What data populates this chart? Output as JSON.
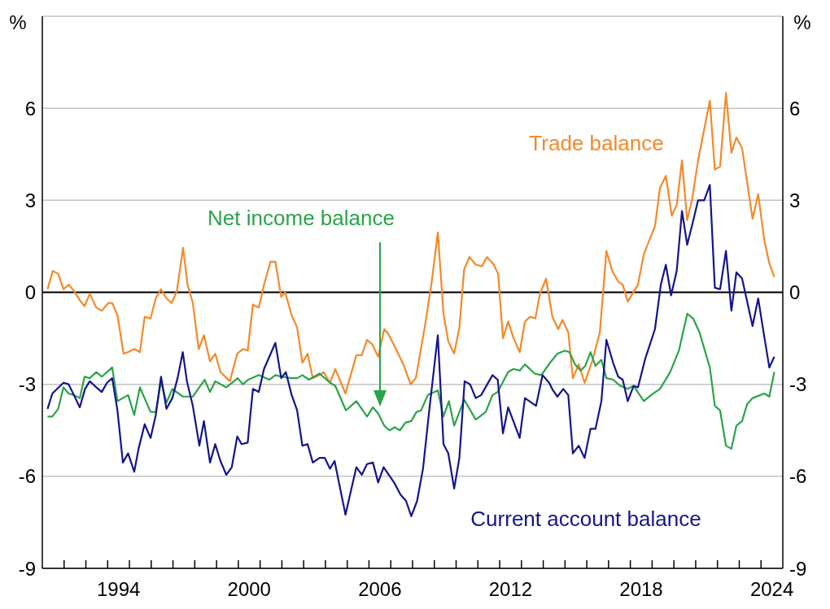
{
  "chart_data": {
    "type": "line",
    "ylabel": "%",
    "y2label": "%",
    "xlim": [
      1991,
      2025
    ],
    "xticks": [
      {
        "value": 1992,
        "label": null
      },
      {
        "value": 1993,
        "label": null
      },
      {
        "value": 1994,
        "label": null
      },
      {
        "value": 1994.5,
        "label": "1994"
      },
      {
        "value": 1995,
        "label": null
      },
      {
        "value": 1996,
        "label": null
      },
      {
        "value": 1997,
        "label": null
      },
      {
        "value": 1998,
        "label": null
      },
      {
        "value": 1999,
        "label": null
      },
      {
        "value": 2000,
        "label": null
      },
      {
        "value": 2000.5,
        "label": "2000"
      },
      {
        "value": 2001,
        "label": null
      },
      {
        "value": 2002,
        "label": null
      },
      {
        "value": 2003,
        "label": null
      },
      {
        "value": 2004,
        "label": null
      },
      {
        "value": 2005,
        "label": null
      },
      {
        "value": 2006,
        "label": null
      },
      {
        "value": 2006.5,
        "label": "2006"
      },
      {
        "value": 2007,
        "label": null
      },
      {
        "value": 2008,
        "label": null
      },
      {
        "value": 2009,
        "label": null
      },
      {
        "value": 2010,
        "label": null
      },
      {
        "value": 2011,
        "label": null
      },
      {
        "value": 2012,
        "label": null
      },
      {
        "value": 2012.5,
        "label": "2012"
      },
      {
        "value": 2013,
        "label": null
      },
      {
        "value": 2014,
        "label": null
      },
      {
        "value": 2015,
        "label": null
      },
      {
        "value": 2016,
        "label": null
      },
      {
        "value": 2017,
        "label": null
      },
      {
        "value": 2018,
        "label": null
      },
      {
        "value": 2018.5,
        "label": "2018"
      },
      {
        "value": 2019,
        "label": null
      },
      {
        "value": 2020,
        "label": null
      },
      {
        "value": 2021,
        "label": null
      },
      {
        "value": 2022,
        "label": null
      },
      {
        "value": 2023,
        "label": null
      },
      {
        "value": 2024,
        "label": null
      },
      {
        "value": 2024.5,
        "label": "2024"
      }
    ],
    "ylim": [
      -9,
      9
    ],
    "yticks": [
      -9,
      -6,
      -3,
      0,
      3,
      6
    ],
    "y2lim": [
      -9,
      9
    ],
    "y2ticks": [
      -9,
      -6,
      -3,
      0,
      3,
      6
    ],
    "grid": "y",
    "marker": "none",
    "ref_lines": [
      {
        "axis": "y",
        "value": 0,
        "color": "#000000"
      }
    ],
    "series": [
      {
        "name": "Trade balance",
        "color": "#f5892a",
        "x": [
          1991.24,
          1991.48,
          1991.73,
          1991.97,
          1992.21,
          1992.45,
          1992.76,
          1992.94,
          1993.18,
          1993.48,
          1993.73,
          1994.03,
          1994.21,
          1994.45,
          1994.73,
          1994.94,
          1995.22,
          1995.48,
          1995.7,
          1995.97,
          1996.21,
          1996.45,
          1996.7,
          1996.94,
          1997.18,
          1997.46,
          1997.67,
          1997.91,
          1998.18,
          1998.42,
          1998.7,
          1998.94,
          1999.18,
          1999.61,
          1999.95,
          2000.21,
          2000.43,
          2000.67,
          2000.94,
          2001.18,
          2001.48,
          2001.7,
          2001.97,
          2002.15,
          2002.45,
          2002.7,
          2002.94,
          2003.18,
          2003.42,
          2003.73,
          2003.91,
          2004.21,
          2004.45,
          2004.92,
          2005.42,
          2005.67,
          2005.91,
          2006.15,
          2006.42,
          2006.7,
          2006.88,
          2007.24,
          2007.61,
          2007.91,
          2008.15,
          2008.58,
          2008.88,
          2009.16,
          2009.42,
          2009.64,
          2009.91,
          2010.15,
          2010.37,
          2010.61,
          2010.9,
          2011.18,
          2011.42,
          2011.73,
          2011.93,
          2012.15,
          2012.39,
          2012.64,
          2012.92,
          2013.16,
          2013.4,
          2013.64,
          2013.85,
          2014.13,
          2014.42,
          2014.69,
          2014.88,
          2015.15,
          2015.36,
          2015.63,
          2015.9,
          2016.27,
          2016.6,
          2016.9,
          2017.17,
          2017.44,
          2017.65,
          2017.88,
          2018.35,
          2018.62,
          2019.13,
          2019.36,
          2019.63,
          2019.9,
          2020.13,
          2020.37,
          2020.61,
          2020.84,
          2021.11,
          2021.65,
          2021.88,
          2022.12,
          2022.39,
          2022.64,
          2022.87,
          2023.13,
          2023.61,
          2023.87,
          2024.15,
          2024.38,
          2024.61
        ],
        "values": [
          0.1,
          0.7,
          0.6,
          0.1,
          0.25,
          0.05,
          -0.3,
          -0.45,
          -0.05,
          -0.5,
          -0.6,
          -0.35,
          -0.35,
          -0.75,
          -2.0,
          -1.95,
          -1.85,
          -1.95,
          -0.8,
          -0.85,
          -0.2,
          0.1,
          -0.2,
          -0.35,
          0.05,
          1.45,
          0.25,
          -0.35,
          -1.85,
          -1.4,
          -2.25,
          -2.0,
          -2.6,
          -2.9,
          -2.0,
          -1.85,
          -1.9,
          -0.4,
          -0.5,
          0.25,
          1.0,
          1.0,
          -0.15,
          0,
          -0.75,
          -1.15,
          -2.3,
          -2.0,
          -2.8,
          -2.7,
          -2.6,
          -2.95,
          -2.5,
          -3.3,
          -2.05,
          -2.05,
          -1.55,
          -1.7,
          -2.1,
          -1.2,
          -1.35,
          -1.85,
          -2.4,
          -3.0,
          -2.8,
          -1.05,
          0.35,
          1.95,
          -0.7,
          -1.6,
          -2.0,
          -1.15,
          0.75,
          1.15,
          0.9,
          0.85,
          1.15,
          0.9,
          0.6,
          -1.5,
          -0.95,
          -1.5,
          -1.95,
          -0.95,
          -0.8,
          -0.85,
          -0.05,
          0.45,
          -0.8,
          -1.2,
          -0.9,
          -1.3,
          -2.8,
          -2.35,
          -2.95,
          -2.2,
          -1.3,
          1.35,
          0.7,
          0.35,
          0.25,
          -0.3,
          0.25,
          1.25,
          2.15,
          3.4,
          3.8,
          2.5,
          2.85,
          4.3,
          2.35,
          3.05,
          4.3,
          6.25,
          4.0,
          4.1,
          6.5,
          4.55,
          5.05,
          4.7,
          2.4,
          3.2,
          1.7,
          0.95,
          0.5
        ]
      },
      {
        "name": "Net income balance",
        "color": "#2ba34a",
        "x": [
          1991.24,
          1991.46,
          1991.73,
          1991.97,
          1992.21,
          1992.45,
          1992.72,
          1992.94,
          1993.18,
          1993.48,
          1993.73,
          1993.97,
          1994.21,
          1994.45,
          1994.94,
          1995.22,
          1995.48,
          1995.97,
          1996.21,
          1996.45,
          1996.7,
          1996.97,
          1997.45,
          1997.91,
          1998.45,
          1998.7,
          1998.94,
          1999.45,
          1999.97,
          2000.21,
          2000.45,
          2000.94,
          2001.42,
          2001.7,
          2001.97,
          2002.45,
          2002.7,
          2002.94,
          2003.24,
          2003.73,
          2004.21,
          2004.45,
          2004.94,
          2005.42,
          2005.91,
          2006.18,
          2006.42,
          2006.7,
          2006.94,
          2007.18,
          2007.42,
          2007.67,
          2007.94,
          2008.18,
          2008.39,
          2008.7,
          2009.16,
          2009.42,
          2009.67,
          2009.91,
          2010.37,
          2010.9,
          2011.36,
          2011.67,
          2011.91,
          2012.39,
          2012.64,
          2012.92,
          2013.16,
          2013.61,
          2013.91,
          2014.31,
          2014.65,
          2014.99,
          2015.2,
          2015.46,
          2015.72,
          2015.93,
          2016.17,
          2016.4,
          2016.67,
          2016.9,
          2017.21,
          2017.54,
          2017.88,
          2018.15,
          2018.62,
          2018.95,
          2019.36,
          2019.83,
          2020.23,
          2020.61,
          2020.88,
          2021.17,
          2021.65,
          2021.88,
          2022.12,
          2022.39,
          2022.64,
          2022.87,
          2023.13,
          2023.36,
          2023.61,
          2024.15,
          2024.38,
          2024.61
        ],
        "values": [
          -4.05,
          -4.05,
          -3.8,
          -3.1,
          -3.3,
          -3.35,
          -3.45,
          -2.75,
          -2.8,
          -2.6,
          -2.75,
          -2.6,
          -2.45,
          -3.55,
          -3.35,
          -4.0,
          -3.1,
          -3.9,
          -3.9,
          -2.9,
          -3.6,
          -3.15,
          -3.4,
          -3.4,
          -2.85,
          -3.25,
          -2.9,
          -3.1,
          -2.8,
          -3.0,
          -2.85,
          -2.7,
          -2.85,
          -2.7,
          -2.75,
          -2.8,
          -2.8,
          -2.7,
          -2.85,
          -2.65,
          -2.95,
          -3.05,
          -3.85,
          -3.55,
          -4.05,
          -3.75,
          -3.95,
          -4.35,
          -4.5,
          -4.4,
          -4.5,
          -4.25,
          -4.2,
          -3.9,
          -3.85,
          -3.35,
          -3.2,
          -4.05,
          -3.55,
          -4.35,
          -3.5,
          -4.15,
          -3.9,
          -3.35,
          -3.25,
          -2.6,
          -2.5,
          -2.55,
          -2.35,
          -2.65,
          -2.7,
          -2.3,
          -2.0,
          -1.9,
          -1.95,
          -2.35,
          -2.55,
          -2.4,
          -1.95,
          -2.4,
          -2.2,
          -2.8,
          -2.85,
          -3.05,
          -3.15,
          -3.05,
          -3.55,
          -3.35,
          -3.15,
          -2.6,
          -1.9,
          -0.7,
          -0.85,
          -1.3,
          -2.45,
          -3.7,
          -3.85,
          -5.0,
          -5.1,
          -4.35,
          -4.2,
          -3.65,
          -3.45,
          -3.3,
          -3.4,
          -2.6
        ]
      },
      {
        "name": "Current account balance",
        "color": "#13158c",
        "x": [
          1991.24,
          1991.46,
          1991.97,
          1992.21,
          1992.45,
          1992.72,
          1992.96,
          1993.18,
          1993.48,
          1993.73,
          1993.97,
          1994.21,
          1994.45,
          1994.7,
          1994.94,
          1995.22,
          1995.42,
          1995.7,
          1995.97,
          1996.21,
          1996.45,
          1996.7,
          1996.97,
          1997.21,
          1997.45,
          1997.64,
          1997.91,
          1998.21,
          1998.42,
          1998.7,
          1998.94,
          1999.18,
          1999.45,
          1999.7,
          1999.95,
          2000.15,
          2000.43,
          2000.67,
          2000.94,
          2001.18,
          2001.7,
          2001.97,
          2002.18,
          2002.45,
          2002.7,
          2002.94,
          2003.18,
          2003.42,
          2003.73,
          2003.97,
          2004.21,
          2004.42,
          2004.92,
          2005.42,
          2005.67,
          2005.91,
          2006.18,
          2006.42,
          2006.67,
          2007.15,
          2007.45,
          2007.7,
          2007.94,
          2008.21,
          2008.48,
          2008.79,
          2009.16,
          2009.42,
          2009.64,
          2009.91,
          2010.15,
          2010.39,
          2010.64,
          2010.9,
          2011.15,
          2011.67,
          2011.91,
          2012.15,
          2012.39,
          2012.92,
          2013.16,
          2013.67,
          2013.97,
          2014.27,
          2014.45,
          2014.65,
          2014.92,
          2015.15,
          2015.36,
          2015.63,
          2015.9,
          2016.17,
          2016.4,
          2016.67,
          2016.9,
          2017.21,
          2017.44,
          2017.65,
          2017.88,
          2018.15,
          2018.35,
          2018.69,
          2019.13,
          2019.4,
          2019.63,
          2019.87,
          2020.13,
          2020.37,
          2020.61,
          2020.84,
          2021.11,
          2021.39,
          2021.65,
          2021.88,
          2022.12,
          2022.39,
          2022.64,
          2022.87,
          2023.13,
          2023.61,
          2023.87,
          2024.15,
          2024.38,
          2024.61
        ],
        "values": [
          -3.8,
          -3.3,
          -2.95,
          -3.0,
          -3.35,
          -3.75,
          -3.15,
          -2.9,
          -3.1,
          -3.25,
          -2.95,
          -2.8,
          -3.85,
          -5.55,
          -5.25,
          -5.85,
          -5.1,
          -4.3,
          -4.75,
          -4.0,
          -2.75,
          -3.8,
          -3.45,
          -2.8,
          -1.95,
          -2.9,
          -3.7,
          -5.0,
          -4.2,
          -5.55,
          -4.95,
          -5.5,
          -5.95,
          -5.7,
          -4.7,
          -4.95,
          -4.9,
          -3.15,
          -3.25,
          -2.5,
          -1.65,
          -2.8,
          -2.6,
          -3.35,
          -3.85,
          -5.0,
          -4.95,
          -5.55,
          -5.4,
          -5.4,
          -5.75,
          -5.5,
          -7.25,
          -5.7,
          -5.95,
          -5.6,
          -5.55,
          -6.2,
          -5.7,
          -6.2,
          -6.6,
          -6.8,
          -7.3,
          -6.8,
          -5.75,
          -3.7,
          -1.4,
          -4.95,
          -5.25,
          -6.4,
          -5.4,
          -2.9,
          -3.0,
          -3.45,
          -3.35,
          -2.7,
          -2.85,
          -4.6,
          -3.75,
          -4.75,
          -3.45,
          -3.7,
          -2.7,
          -2.95,
          -3.2,
          -3.4,
          -3.15,
          -3.35,
          -5.25,
          -5.0,
          -5.4,
          -4.45,
          -4.45,
          -3.55,
          -1.55,
          -2.3,
          -2.75,
          -2.85,
          -3.55,
          -3.05,
          -3.1,
          -2.15,
          -1.2,
          0.25,
          0.9,
          -0.1,
          0.7,
          2.65,
          1.55,
          2.2,
          3.0,
          3.0,
          3.5,
          0.15,
          0.1,
          1.35,
          -0.6,
          0.65,
          0.45,
          -1.1,
          -0.2,
          -1.45,
          -2.45,
          -2.1
        ]
      }
    ]
  }
}
